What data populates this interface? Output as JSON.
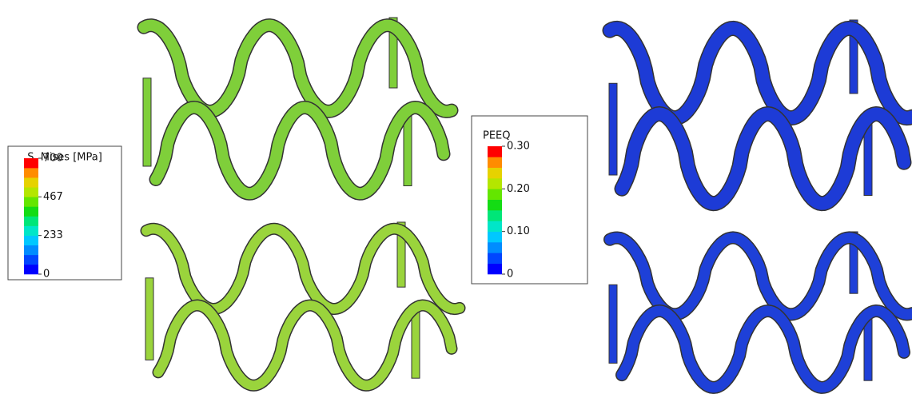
{
  "legends": [
    {
      "title": "S. Mises [MPa]",
      "labels": [
        "700",
        "467",
        "233",
        "0"
      ],
      "colormap": [
        "#0000ff",
        "#0046ff",
        "#008cff",
        "#00c8ff",
        "#00e6c8",
        "#00e678",
        "#14dc14",
        "#64e600",
        "#b4e600",
        "#e6d200",
        "#ff8c00",
        "#ff0000"
      ]
    },
    {
      "title": "PEEQ",
      "labels": [
        "0.30",
        "0.20",
        "0.10",
        "0"
      ],
      "colormap": [
        "#0000ff",
        "#0046ff",
        "#008cff",
        "#00c8ff",
        "#00e6c8",
        "#00e678",
        "#14dc14",
        "#64e600",
        "#b4e600",
        "#e6d200",
        "#ff8c00",
        "#ff0000"
      ]
    }
  ]
}
